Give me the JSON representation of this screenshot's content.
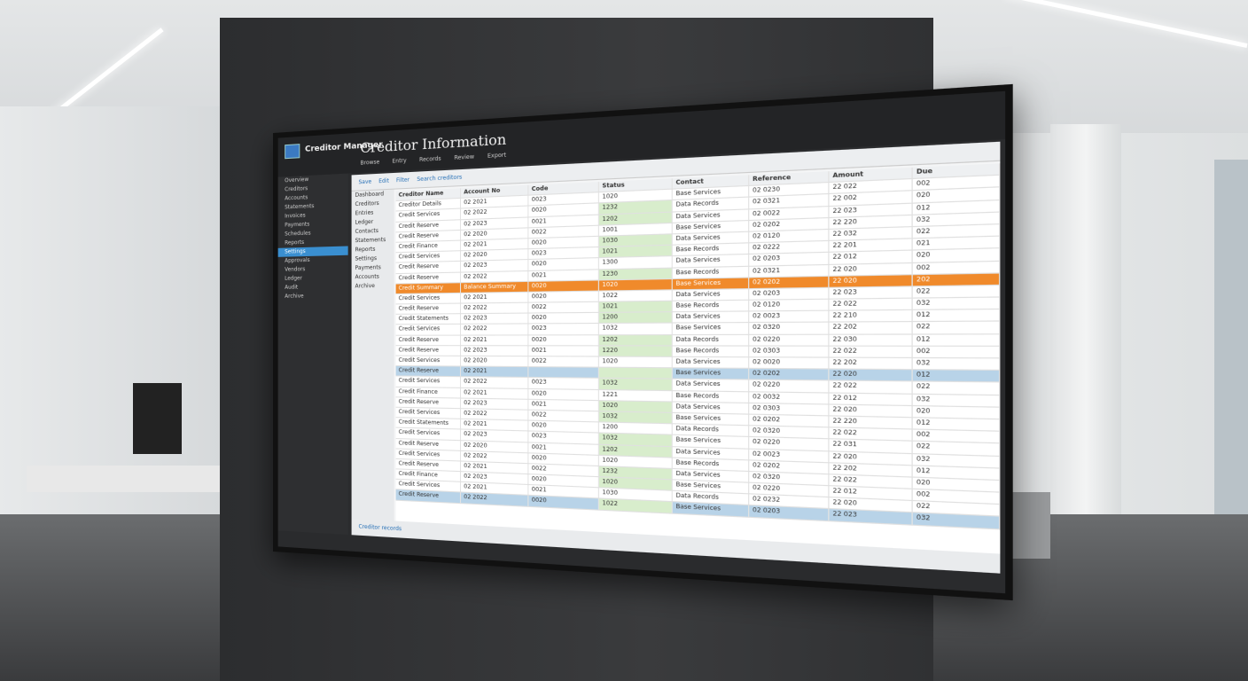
{
  "app": {
    "name": "Creditor Manager",
    "title": "Creditor Information"
  },
  "tabs": [
    "Browse",
    "Entry",
    "Records",
    "Review",
    "Export"
  ],
  "sidebar": {
    "items": [
      "Overview",
      "Creditors",
      "Accounts",
      "Statements",
      "Invoices",
      "Payments",
      "Schedules",
      "Reports",
      "Settings",
      "Approvals",
      "Vendors",
      "Ledger",
      "Audit",
      "Archive"
    ],
    "active_index": 8
  },
  "toolbar": [
    "Save",
    "Edit",
    "Filter",
    "Search creditors"
  ],
  "nav": [
    "Dashboard",
    "Creditors",
    "Entries",
    "Ledger",
    "Contacts",
    "Statements",
    "Reports",
    "Settings",
    "Payments",
    "Accounts",
    "Archive"
  ],
  "table": {
    "headers": [
      "Creditor Name",
      "Account No",
      "Code",
      "Status",
      "Contact",
      "Reference",
      "Amount",
      "Due"
    ],
    "highlight_orange": 8,
    "highlight_blue": [
      16,
      28
    ],
    "rows": [
      [
        "Creditor Details",
        "02 2021",
        "0023",
        "1020",
        "Base Services",
        "02 0230",
        "22 022",
        "002"
      ],
      [
        "Credit Services",
        "02 2022",
        "0020",
        "1232",
        "Data Records",
        "02 0321",
        "22 002",
        "020"
      ],
      [
        "Credit Reserve",
        "02 2023",
        "0021",
        "1202",
        "Data Services",
        "02 0022",
        "22 023",
        "012"
      ],
      [
        "Credit Reserve",
        "02 2020",
        "0022",
        "1001",
        "Base Services",
        "02 0202",
        "22 220",
        "032"
      ],
      [
        "Credit Finance",
        "02 2021",
        "0020",
        "1030",
        "Data Services",
        "02 0120",
        "22 032",
        "022"
      ],
      [
        "Credit Services",
        "02 2020",
        "0023",
        "1021",
        "Base Records",
        "02 0222",
        "22 201",
        "021"
      ],
      [
        "Credit Reserve",
        "02 2023",
        "0020",
        "1300",
        "Data Services",
        "02 0203",
        "22 012",
        "020"
      ],
      [
        "Credit Reserve",
        "02 2022",
        "0021",
        "1230",
        "Base Records",
        "02 0321",
        "22 020",
        "002"
      ],
      [
        "Credit Summary",
        "Balance Summary",
        "0020",
        "1020",
        "Base Services",
        "02 0202",
        "22 020",
        "202"
      ],
      [
        "Credit Services",
        "02 2021",
        "0020",
        "1022",
        "Data Services",
        "02 0203",
        "22 023",
        "022"
      ],
      [
        "Credit Reserve",
        "02 2022",
        "0022",
        "1021",
        "Base Records",
        "02 0120",
        "22 022",
        "032"
      ],
      [
        "Credit Statements",
        "02 2023",
        "0020",
        "1200",
        "Data Services",
        "02 0023",
        "22 210",
        "012"
      ],
      [
        "Credit Services",
        "02 2022",
        "0023",
        "1032",
        "Base Services",
        "02 0320",
        "22 202",
        "022"
      ],
      [
        "Credit Reserve",
        "02 2021",
        "0020",
        "1202",
        "Data Records",
        "02 0220",
        "22 030",
        "012"
      ],
      [
        "Credit Reserve",
        "02 2023",
        "0021",
        "1220",
        "Base Records",
        "02 0303",
        "22 022",
        "002"
      ],
      [
        "Credit Services",
        "02 2020",
        "0022",
        "1020",
        "Data Services",
        "02 0020",
        "22 202",
        "032"
      ],
      [
        "Credit Reserve",
        "02 2021",
        "",
        "",
        "Base Services",
        "02 0202",
        "22 020",
        "012"
      ],
      [
        "Credit Services",
        "02 2022",
        "0023",
        "1032",
        "Data Services",
        "02 0220",
        "22 022",
        "022"
      ],
      [
        "Credit Finance",
        "02 2021",
        "0020",
        "1221",
        "Base Records",
        "02 0032",
        "22 012",
        "032"
      ],
      [
        "Credit Reserve",
        "02 2023",
        "0021",
        "1020",
        "Data Services",
        "02 0303",
        "22 020",
        "020"
      ],
      [
        "Credit Services",
        "02 2022",
        "0022",
        "1032",
        "Base Services",
        "02 0202",
        "22 220",
        "012"
      ],
      [
        "Credit Statements",
        "02 2021",
        "0020",
        "1200",
        "Data Records",
        "02 0320",
        "22 022",
        "002"
      ],
      [
        "Credit Services",
        "02 2023",
        "0023",
        "1032",
        "Base Services",
        "02 0220",
        "22 031",
        "022"
      ],
      [
        "Credit Reserve",
        "02 2020",
        "0021",
        "1202",
        "Data Services",
        "02 0023",
        "22 020",
        "032"
      ],
      [
        "Credit Services",
        "02 2022",
        "0020",
        "1020",
        "Base Records",
        "02 0202",
        "22 202",
        "012"
      ],
      [
        "Credit Reserve",
        "02 2021",
        "0022",
        "1232",
        "Data Services",
        "02 0320",
        "22 022",
        "020"
      ],
      [
        "Credit Finance",
        "02 2023",
        "0020",
        "1020",
        "Base Services",
        "02 0220",
        "22 012",
        "002"
      ],
      [
        "Credit Services",
        "02 2021",
        "0021",
        "1030",
        "Data Records",
        "02 0232",
        "22 020",
        "022"
      ],
      [
        "Credit Reserve",
        "02 2022",
        "0020",
        "1022",
        "Base Services",
        "02 0203",
        "22 023",
        "032"
      ]
    ]
  },
  "status": "Creditor records",
  "colors": {
    "orange": "#f08a2b",
    "blue": "#b8d3e8",
    "green": "#d8edcc",
    "accent": "#3a8fd0"
  }
}
